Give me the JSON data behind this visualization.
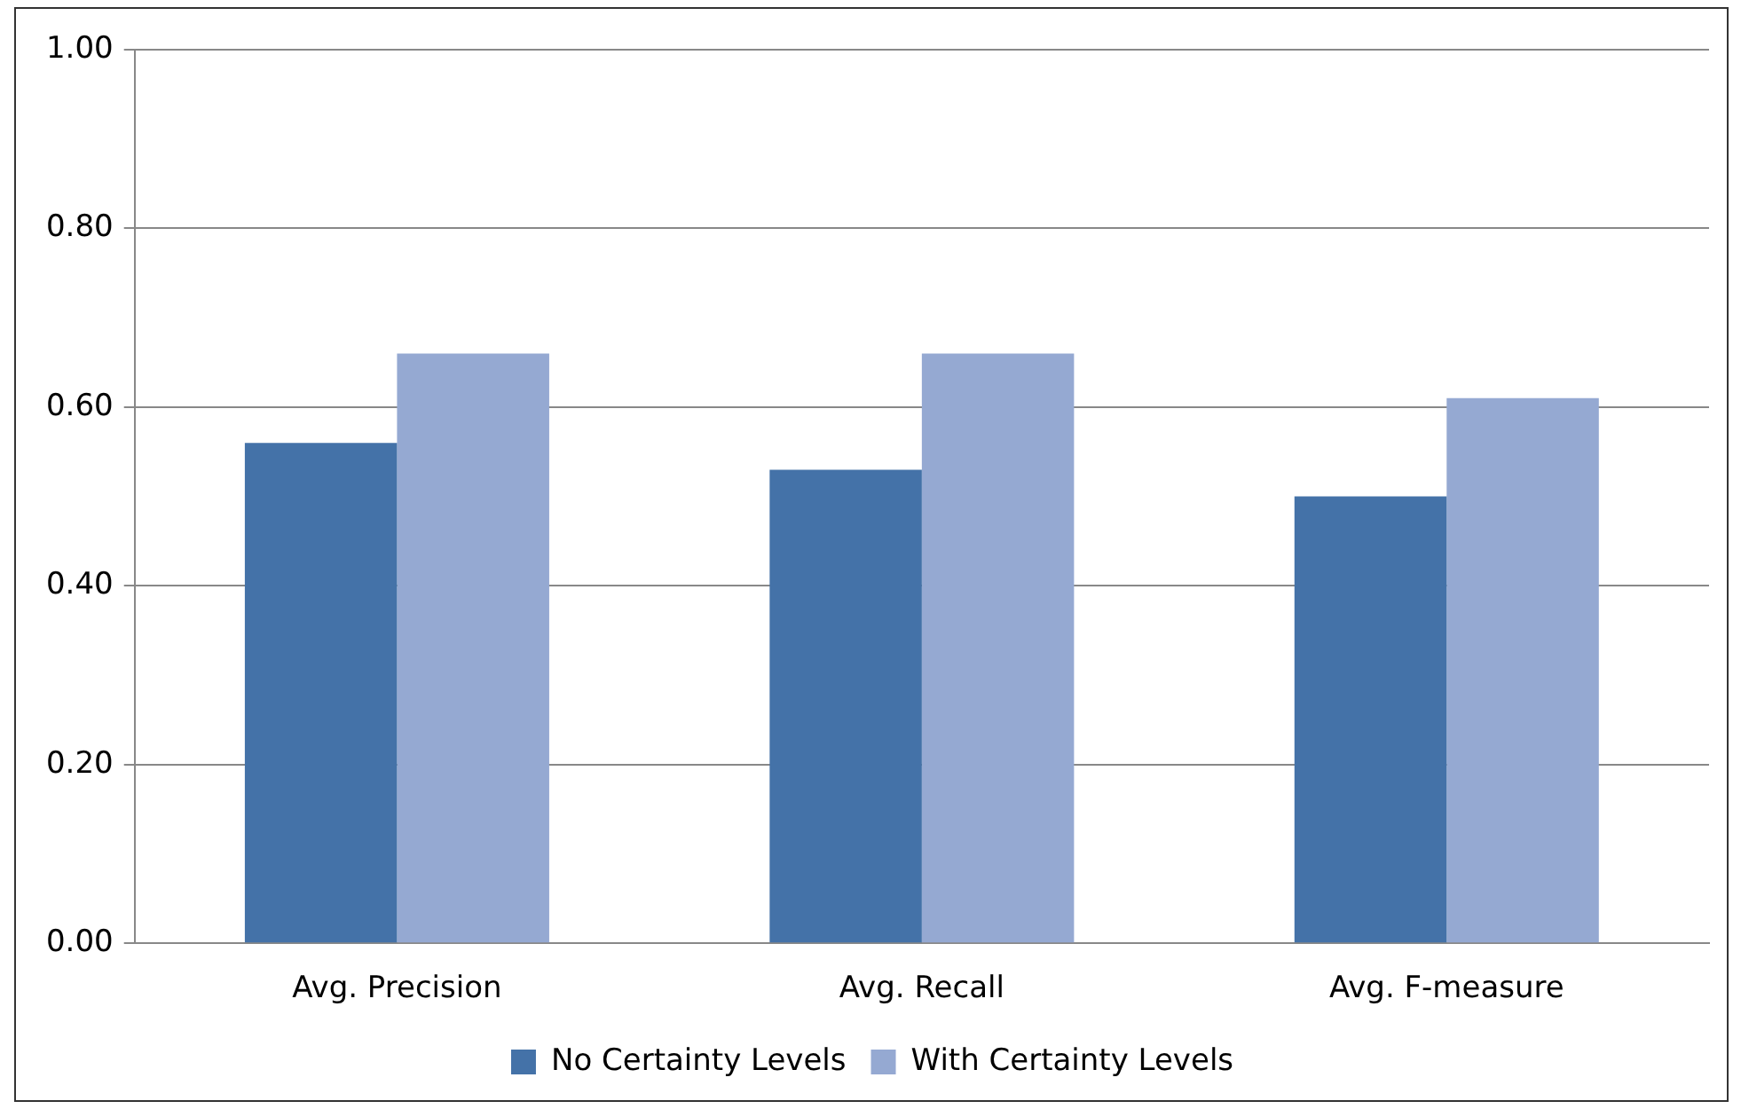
{
  "chart_data": {
    "type": "bar",
    "categories": [
      "Avg. Precision",
      "Avg. Recall",
      "Avg. F-measure"
    ],
    "series": [
      {
        "name": "No Certainty Levels",
        "color": "#4472a8",
        "values": [
          0.56,
          0.53,
          0.5
        ]
      },
      {
        "name": "With Certainty Levels",
        "color": "#95a9d2",
        "values": [
          0.66,
          0.66,
          0.61
        ]
      }
    ],
    "ylim": [
      0,
      1
    ],
    "yticks": [
      {
        "value": 0,
        "label": "0.00"
      },
      {
        "value": 0.2,
        "label": "0.20"
      },
      {
        "value": 0.4,
        "label": "0.40"
      },
      {
        "value": 0.6,
        "label": "0.60"
      },
      {
        "value": 0.8,
        "label": "0.80"
      },
      {
        "value": 1,
        "label": "1.00"
      }
    ],
    "grid": "y",
    "legend": "bottom"
  }
}
